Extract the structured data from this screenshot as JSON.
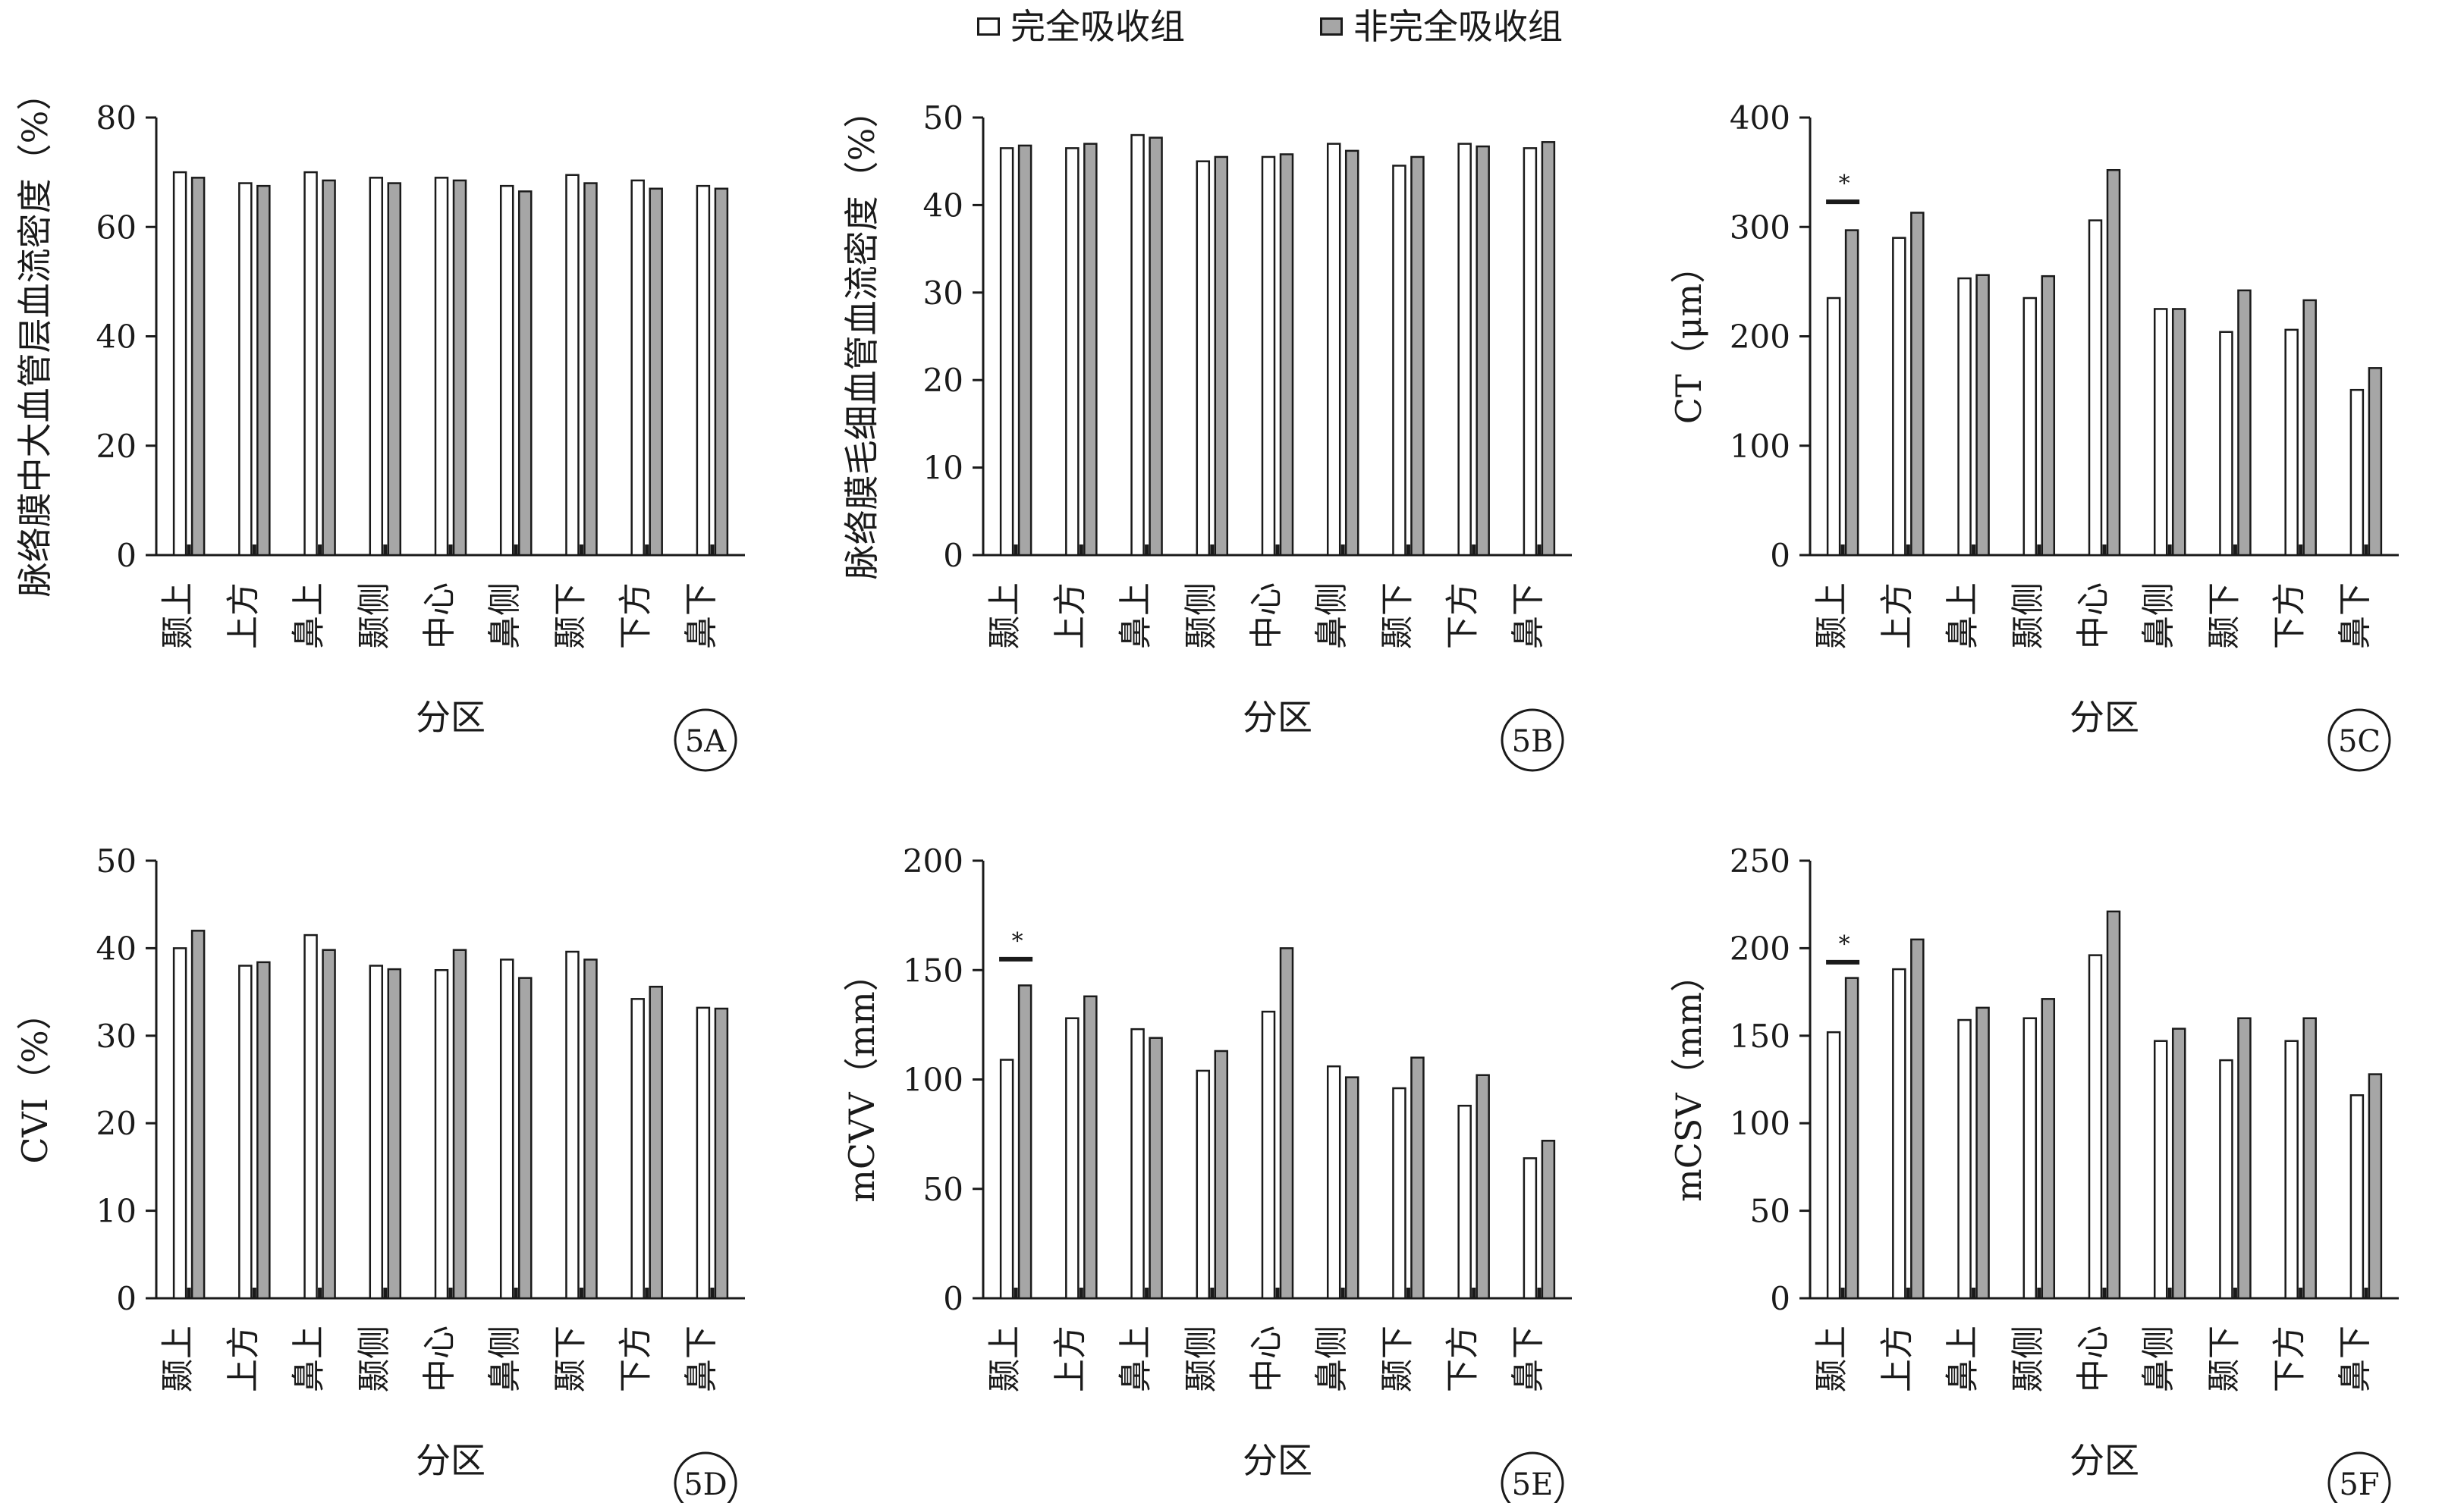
{
  "legend": [
    {
      "label": "完全吸收组",
      "color": "#ffffff"
    },
    {
      "label": "非完全吸收组",
      "color": "#a6a6a6"
    }
  ],
  "chart_data": [
    {
      "type": "bar",
      "tag": "5A",
      "categories": [
        "颞上",
        "上方",
        "鼻上",
        "颞侧",
        "中心",
        "鼻侧",
        "颞下",
        "下方",
        "鼻下"
      ],
      "series": [
        {
          "name": "完全吸收组",
          "values": [
            70,
            68,
            70,
            69,
            69,
            67.5,
            69.5,
            68.5,
            67.5
          ]
        },
        {
          "name": "非完全吸收组",
          "values": [
            69,
            67.5,
            68.5,
            68,
            68.5,
            66.5,
            68,
            67,
            67
          ]
        }
      ],
      "ylabel": "脉络膜中大血管层血流密度（%）",
      "xlabel": "分区",
      "ylim": [
        0,
        80
      ],
      "yticks": [
        0,
        20,
        40,
        60,
        80
      ],
      "significance": []
    },
    {
      "type": "bar",
      "tag": "5B",
      "categories": [
        "颞上",
        "上方",
        "鼻上",
        "颞侧",
        "中心",
        "鼻侧",
        "颞下",
        "下方",
        "鼻下"
      ],
      "series": [
        {
          "name": "完全吸收组",
          "values": [
            46.5,
            46.5,
            48,
            45,
            45.5,
            47,
            44.5,
            47,
            46.5
          ]
        },
        {
          "name": "非完全吸收组",
          "values": [
            46.8,
            47,
            47.7,
            45.5,
            45.8,
            46.2,
            45.5,
            46.7,
            47.2
          ]
        }
      ],
      "ylabel": "脉络膜毛细血管血流密度（%）",
      "xlabel": "分区",
      "ylim": [
        0,
        50
      ],
      "yticks": [
        0,
        10,
        20,
        30,
        40,
        50
      ],
      "significance": []
    },
    {
      "type": "bar",
      "tag": "5C",
      "categories": [
        "颞上",
        "上方",
        "鼻上",
        "颞侧",
        "中心",
        "鼻侧",
        "颞下",
        "下方",
        "鼻下"
      ],
      "series": [
        {
          "name": "完全吸收组",
          "values": [
            235,
            290,
            253,
            235,
            306,
            225,
            204,
            206,
            151
          ]
        },
        {
          "name": "非完全吸收组",
          "values": [
            297,
            313,
            256,
            255,
            352,
            225,
            242,
            233,
            171
          ]
        }
      ],
      "ylabel": "CT（μm）",
      "xlabel": "分区",
      "ylim": [
        0,
        400
      ],
      "yticks": [
        0,
        100,
        200,
        300,
        400
      ],
      "significance": [
        {
          "category": "颞上",
          "label": "*",
          "y": 323
        }
      ]
    },
    {
      "type": "bar",
      "tag": "5D",
      "categories": [
        "颞上",
        "上方",
        "鼻上",
        "颞侧",
        "中心",
        "鼻侧",
        "颞下",
        "下方",
        "鼻下"
      ],
      "series": [
        {
          "name": "完全吸收组",
          "values": [
            40,
            38,
            41.5,
            38,
            37.5,
            38.7,
            39.6,
            34.2,
            33.2
          ]
        },
        {
          "name": "非完全吸收组",
          "values": [
            42,
            38.4,
            39.8,
            37.6,
            39.8,
            36.6,
            38.7,
            35.6,
            33.1
          ]
        }
      ],
      "ylabel": "CVI（%）",
      "xlabel": "分区",
      "ylim": [
        0,
        50
      ],
      "yticks": [
        0,
        10,
        20,
        30,
        40,
        50
      ],
      "significance": []
    },
    {
      "type": "bar",
      "tag": "5E",
      "categories": [
        "颞上",
        "上方",
        "鼻上",
        "颞侧",
        "中心",
        "鼻侧",
        "颞下",
        "下方",
        "鼻下"
      ],
      "series": [
        {
          "name": "完全吸收组",
          "values": [
            109,
            128,
            123,
            104,
            131,
            106,
            96,
            88,
            64
          ]
        },
        {
          "name": "非完全吸收组",
          "values": [
            143,
            138,
            119,
            113,
            160,
            101,
            110,
            102,
            72
          ]
        }
      ],
      "ylabel": "mCVV（mm）",
      "xlabel": "分区",
      "ylim": [
        0,
        200
      ],
      "yticks": [
        0,
        50,
        100,
        150,
        200
      ],
      "significance": [
        {
          "category": "颞上",
          "label": "*",
          "y": 155
        }
      ]
    },
    {
      "type": "bar",
      "tag": "5F",
      "categories": [
        "颞上",
        "上方",
        "鼻上",
        "颞侧",
        "中心",
        "鼻侧",
        "颞下",
        "下方",
        "鼻下"
      ],
      "series": [
        {
          "name": "完全吸收组",
          "values": [
            152,
            188,
            159,
            160,
            196,
            147,
            136,
            147,
            116
          ]
        },
        {
          "name": "非完全吸收组",
          "values": [
            183,
            205,
            166,
            171,
            221,
            154,
            160,
            160,
            128
          ]
        }
      ],
      "ylabel": "mCSV（mm）",
      "xlabel": "分区",
      "ylim": [
        0,
        250
      ],
      "yticks": [
        0,
        50,
        100,
        150,
        200,
        250
      ],
      "significance": [
        {
          "category": "颞上",
          "label": "*",
          "y": 192
        }
      ]
    }
  ]
}
